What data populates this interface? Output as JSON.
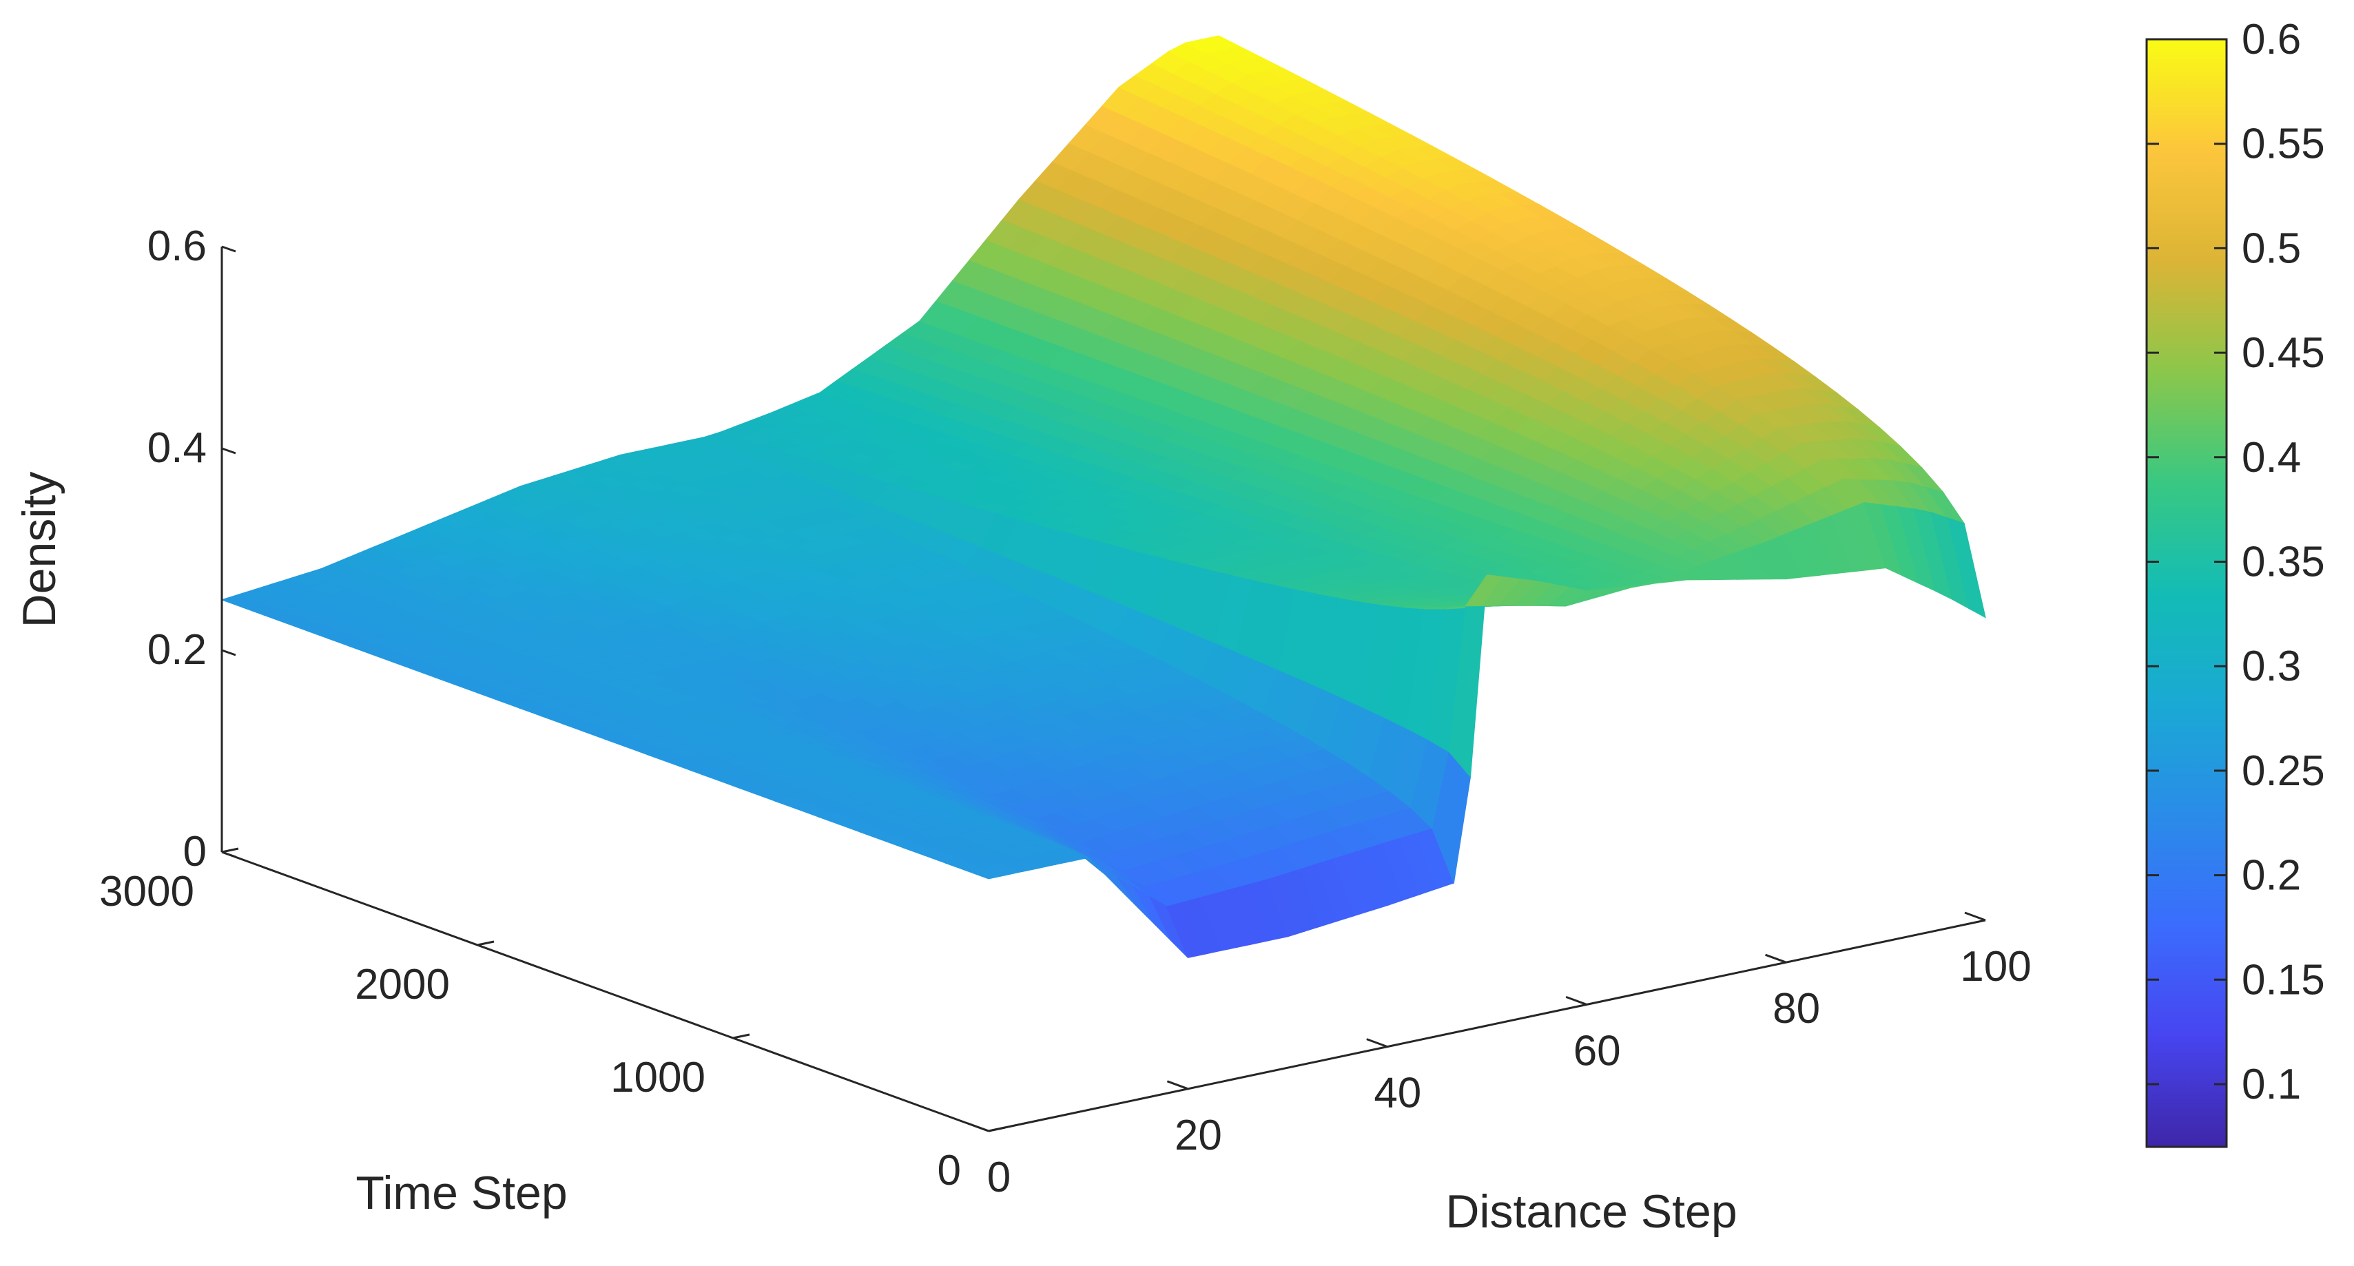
{
  "chart_data": {
    "type": "surface",
    "title": "",
    "xlabel": "Distance Step",
    "ylabel": "Time Step",
    "zlabel": "Density",
    "x_ticks": [
      "0",
      "20",
      "40",
      "60",
      "80",
      "100"
    ],
    "y_ticks": [
      "0",
      "1000",
      "2000",
      "3000"
    ],
    "z_ticks": [
      "0",
      "0.2",
      "0.4",
      "0.6"
    ],
    "xlim": [
      0,
      100
    ],
    "ylim": [
      0,
      3000
    ],
    "zlim": [
      0,
      0.6
    ],
    "colorbar": {
      "colormap": "parula",
      "range": [
        0.07,
        0.6
      ],
      "ticks": [
        "0.1",
        "0.15",
        "0.2",
        "0.25",
        "0.3",
        "0.35",
        "0.4",
        "0.45",
        "0.5",
        "0.55",
        "0.6"
      ]
    },
    "surface_profiles": {
      "distance": [
        0,
        10,
        20,
        30,
        40,
        48,
        49,
        55,
        60,
        70,
        80,
        90,
        96,
        100
      ],
      "density_at_time_0": [
        0.25,
        0.25,
        0.13,
        0.13,
        0.14,
        0.15,
        0.45,
        0.43,
        0.41,
        0.4,
        0.38,
        0.37,
        0.33,
        0.3
      ],
      "density_at_time_3000": [
        0.25,
        0.26,
        0.28,
        0.3,
        0.31,
        0.31,
        0.31,
        0.32,
        0.33,
        0.38,
        0.48,
        0.57,
        0.6,
        0.6
      ]
    }
  }
}
